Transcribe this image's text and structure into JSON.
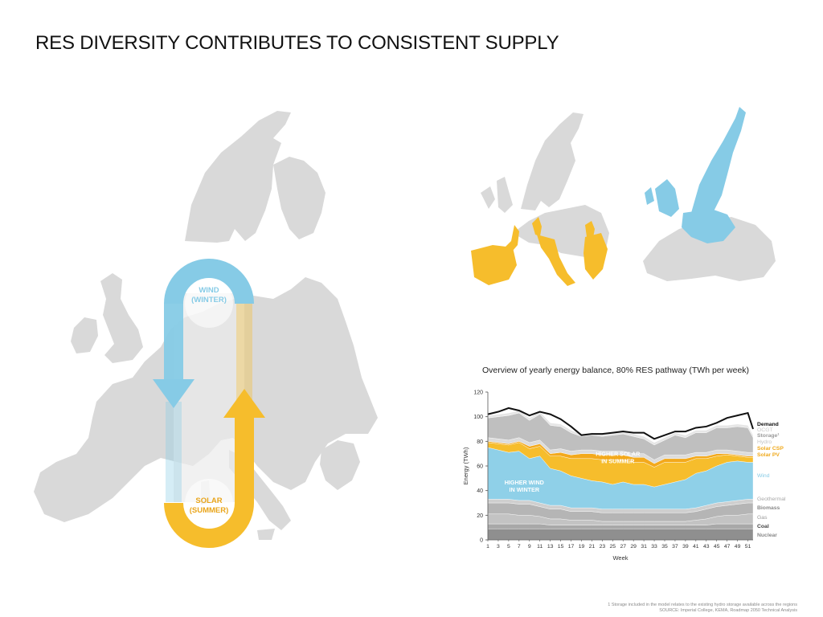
{
  "page": {
    "title": "RES DIVERSITY CONTRIBUTES TO CONSISTENT SUPPLY",
    "footnote_1": "1 Storage included in the model relates to the existing hydro storage available across the regions",
    "footnote_2": "SOURCE: Imperial College, KEMA, Roadmap 2050 Technical Analysis"
  },
  "big_map": {
    "wind_label_1": "WIND",
    "wind_label_2": "(WINTER)",
    "solar_label_1": "SOLAR",
    "solar_label_2": "(SUMMER)"
  },
  "colors": {
    "wind": "#86cbe6",
    "solar": "#f6bd2c",
    "land": "#d9d9d9",
    "demand": "#111111"
  },
  "chart_data": {
    "type": "area",
    "title": "Overview of yearly energy balance, 80% RES pathway (TWh per week)",
    "xlabel": "Week",
    "ylabel": "Energy (TWh)",
    "ylim": [
      0,
      120
    ],
    "yticks": [
      0,
      20,
      40,
      60,
      80,
      100,
      120
    ],
    "x": [
      1,
      3,
      5,
      7,
      9,
      11,
      13,
      15,
      17,
      19,
      21,
      23,
      25,
      27,
      29,
      31,
      33,
      35,
      37,
      39,
      41,
      43,
      45,
      47,
      49,
      51,
      52
    ],
    "xtick_labels": [
      "1",
      "3",
      "5",
      "7",
      "9",
      "11",
      "13",
      "15",
      "17",
      "19",
      "21",
      "23",
      "25",
      "27",
      "29",
      "31",
      "33",
      "35",
      "37",
      "39",
      "41",
      "43",
      "45",
      "47",
      "49",
      "51"
    ],
    "series": [
      {
        "name": "Nuclear",
        "values": [
          9,
          9,
          9,
          9,
          9,
          9,
          9,
          9,
          9,
          9,
          9,
          9,
          9,
          9,
          9,
          9,
          9,
          9,
          9,
          9,
          9,
          9,
          9,
          9,
          9,
          9,
          9
        ]
      },
      {
        "name": "Coal",
        "values": [
          4,
          4,
          4,
          4,
          4,
          4,
          3,
          3,
          3,
          3,
          3,
          3,
          3,
          3,
          3,
          3,
          3,
          3,
          3,
          3,
          3,
          3,
          4,
          4,
          4,
          4,
          4
        ]
      },
      {
        "name": "Gas",
        "values": [
          8,
          8,
          8,
          7,
          7,
          6,
          5,
          5,
          4,
          4,
          4,
          3,
          3,
          3,
          3,
          3,
          3,
          3,
          3,
          3,
          4,
          5,
          6,
          7,
          7,
          8,
          8
        ]
      },
      {
        "name": "Biomass",
        "values": [
          9,
          9,
          9,
          9,
          9,
          8,
          8,
          8,
          7,
          7,
          7,
          7,
          7,
          7,
          7,
          7,
          7,
          7,
          7,
          7,
          7,
          8,
          8,
          8,
          9,
          9,
          9
        ]
      },
      {
        "name": "Geothermal",
        "values": [
          3,
          3,
          3,
          3,
          3,
          3,
          3,
          3,
          3,
          3,
          3,
          3,
          3,
          3,
          3,
          3,
          3,
          3,
          3,
          3,
          3,
          3,
          3,
          3,
          3,
          3,
          3
        ]
      },
      {
        "name": "Wind",
        "values": [
          42,
          40,
          38,
          40,
          34,
          38,
          30,
          28,
          26,
          24,
          22,
          22,
          20,
          22,
          20,
          20,
          18,
          20,
          22,
          24,
          28,
          28,
          30,
          32,
          32,
          30,
          30
        ]
      },
      {
        "name": "Solar PV",
        "values": [
          4,
          5,
          6,
          7,
          8,
          8,
          10,
          12,
          14,
          16,
          18,
          18,
          20,
          18,
          18,
          18,
          16,
          18,
          16,
          14,
          12,
          10,
          8,
          6,
          4,
          4,
          4
        ]
      },
      {
        "name": "Solar CSP",
        "values": [
          1,
          1,
          1,
          1,
          2,
          2,
          2,
          3,
          3,
          4,
          4,
          4,
          4,
          4,
          4,
          4,
          3,
          3,
          3,
          3,
          2,
          2,
          2,
          1,
          1,
          1,
          1
        ]
      },
      {
        "name": "Hydro",
        "values": [
          3,
          3,
          3,
          3,
          3,
          3,
          3,
          3,
          3,
          3,
          3,
          3,
          3,
          3,
          3,
          3,
          3,
          3,
          3,
          3,
          3,
          3,
          3,
          3,
          3,
          3,
          3
        ]
      },
      {
        "name": "Storage¹",
        "values": [
          16,
          18,
          20,
          20,
          18,
          21,
          20,
          18,
          15,
          11,
          12,
          12,
          13,
          14,
          14,
          12,
          12,
          12,
          16,
          14,
          16,
          16,
          18,
          18,
          20,
          20,
          12
        ]
      },
      {
        "name": "OCGT",
        "values": [
          2,
          2,
          2,
          2,
          2,
          2,
          2,
          2,
          2,
          2,
          2,
          2,
          2,
          2,
          2,
          2,
          2,
          2,
          2,
          2,
          2,
          2,
          2,
          2,
          2,
          2,
          2
        ]
      }
    ],
    "demand": {
      "name": "Demand",
      "values": [
        102,
        104,
        107,
        105,
        101,
        104,
        102,
        98,
        92,
        85,
        86,
        86,
        87,
        88,
        87,
        87,
        82,
        85,
        88,
        88,
        91,
        92,
        95,
        99,
        101,
        103,
        90
      ]
    },
    "annotations": [
      {
        "text_1": "HIGHER SOLAR",
        "text_2": "IN SUMMER",
        "x": 26,
        "y": 68
      },
      {
        "text_1": "HIGHER WIND",
        "text_2": "IN WINTER",
        "x": 8,
        "y": 45
      }
    ]
  }
}
